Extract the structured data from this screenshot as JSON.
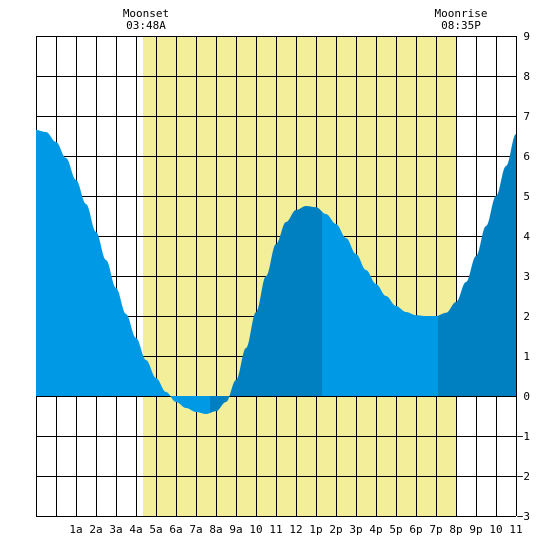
{
  "chart_data": {
    "type": "area",
    "title": "",
    "xlabel": "",
    "ylabel": "",
    "x_range_hours": [
      0,
      24
    ],
    "ylim": [
      -3,
      9
    ],
    "grid": true,
    "x_tick_labels": [
      {
        "hour": 1,
        "label": "1a"
      },
      {
        "hour": 2,
        "label": "2a"
      },
      {
        "hour": 3,
        "label": "3a"
      },
      {
        "hour": 4,
        "label": "4a"
      },
      {
        "hour": 5,
        "label": "5a"
      },
      {
        "hour": 6,
        "label": "6a"
      },
      {
        "hour": 7,
        "label": "7a"
      },
      {
        "hour": 8,
        "label": "8a"
      },
      {
        "hour": 9,
        "label": "9a"
      },
      {
        "hour": 10,
        "label": "10"
      },
      {
        "hour": 11,
        "label": "11"
      },
      {
        "hour": 12,
        "label": "12"
      },
      {
        "hour": 13,
        "label": "1p"
      },
      {
        "hour": 14,
        "label": "2p"
      },
      {
        "hour": 15,
        "label": "3p"
      },
      {
        "hour": 16,
        "label": "4p"
      },
      {
        "hour": 17,
        "label": "5p"
      },
      {
        "hour": 18,
        "label": "6p"
      },
      {
        "hour": 19,
        "label": "7p"
      },
      {
        "hour": 20,
        "label": "8p"
      },
      {
        "hour": 21,
        "label": "9p"
      },
      {
        "hour": 22,
        "label": "10"
      },
      {
        "hour": 23,
        "label": "11"
      }
    ],
    "y_ticks": [
      -3,
      -2,
      -1,
      0,
      1,
      2,
      3,
      4,
      5,
      6,
      7,
      8,
      9
    ],
    "moon_window": {
      "start_hour": 5.35,
      "end_hour": 21.0
    },
    "moonset": {
      "label": "Moonset",
      "time": "03:48A",
      "hour": 4.5
    },
    "moonrise": {
      "label": "Moonrise",
      "time": "08:35P",
      "hour": 20.5
    },
    "tide_series": {
      "name": "",
      "hours": [
        0,
        0.5,
        1,
        1.5,
        2,
        2.5,
        3,
        3.5,
        4,
        4.5,
        5,
        5.5,
        6,
        6.5,
        7,
        7.5,
        8,
        8.5,
        9,
        9.5,
        10,
        10.5,
        11,
        11.5,
        12,
        12.5,
        13,
        13.5,
        14,
        14.5,
        15,
        15.5,
        16,
        16.5,
        17,
        17.5,
        18,
        18.5,
        19,
        19.5,
        20,
        20.5,
        21,
        21.5,
        22,
        22.5,
        23,
        23.5,
        24
      ],
      "values": [
        6.65,
        6.6,
        6.35,
        5.95,
        5.4,
        4.8,
        4.1,
        3.4,
        2.7,
        2.05,
        1.45,
        0.9,
        0.45,
        0.1,
        -0.15,
        -0.3,
        -0.4,
        -0.45,
        -0.38,
        -0.15,
        0.4,
        1.2,
        2.1,
        3.0,
        3.8,
        4.35,
        4.65,
        4.75,
        4.72,
        4.55,
        4.3,
        3.95,
        3.55,
        3.15,
        2.8,
        2.5,
        2.25,
        2.1,
        2.02,
        2.0,
        2.0,
        2.08,
        2.35,
        2.85,
        3.5,
        4.25,
        5.0,
        5.75,
        6.55
      ]
    },
    "shading_breaks": [
      {
        "start_hour": 0,
        "end_hour": 8.7,
        "tone": "light"
      },
      {
        "start_hour": 8.7,
        "end_hour": 9.65,
        "tone": "dark"
      },
      {
        "start_hour": 9.65,
        "end_hour": 14.3,
        "tone": "dark"
      },
      {
        "start_hour": 14.3,
        "end_hour": 20.1,
        "tone": "light"
      },
      {
        "start_hour": 20.1,
        "end_hour": 24,
        "tone": "dark"
      }
    ],
    "colors": {
      "moon_band": "#f3ee9a",
      "grid": "#000000",
      "tide_light": "#0099e6",
      "tide_dark": "#0080c0",
      "background": "#ffffff"
    }
  }
}
